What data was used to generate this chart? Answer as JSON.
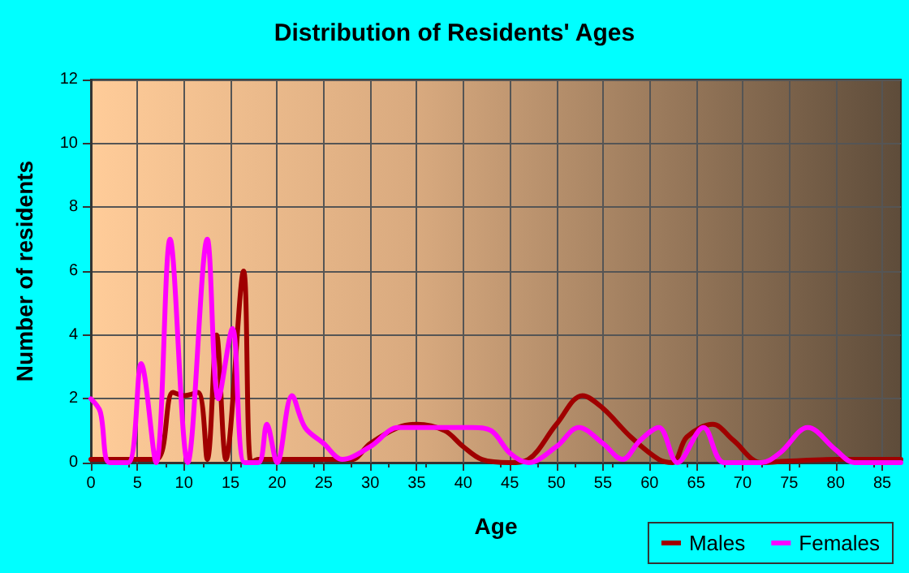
{
  "chart_data": {
    "type": "line",
    "title": "Distribution of Residents' Ages",
    "xlabel": "Age",
    "ylabel": "Number of residents",
    "xlim": [
      0,
      87
    ],
    "xticks": [
      0,
      5,
      10,
      15,
      20,
      25,
      30,
      35,
      40,
      45,
      50,
      55,
      60,
      65,
      70,
      75,
      80,
      85
    ],
    "ylim": [
      0,
      12
    ],
    "yticks": [
      0,
      2,
      4,
      6,
      8,
      10,
      12
    ],
    "grid": true,
    "legend": "bottom right",
    "marker": "none",
    "line_style": "solid",
    "series": [
      {
        "name": "Males",
        "color": "#a00000",
        "x": [
          0,
          3,
          7,
          8.8,
          10,
          11.5,
          12.5,
          13.5,
          14.5,
          16.4,
          17.2,
          18,
          25,
          28,
          30,
          33,
          35,
          38,
          40,
          42,
          45,
          47,
          50,
          52.8,
          55,
          58,
          61,
          62.5,
          64,
          66.8,
          69,
          72,
          75,
          80,
          87
        ],
        "values": [
          0.1,
          0.1,
          0.1,
          2.2,
          2.1,
          2.2,
          0.1,
          4,
          0.1,
          6,
          0,
          0.1,
          0.1,
          0.1,
          0.6,
          1.1,
          1.2,
          1,
          0.5,
          0.1,
          0,
          0.1,
          1.2,
          2.1,
          1.7,
          0.8,
          0.1,
          0,
          0.8,
          1.2,
          0.7,
          0,
          0.05,
          0.1,
          0.1
        ]
      },
      {
        "name": "Females",
        "color": "#ff00ff",
        "x": [
          0,
          1,
          2,
          4,
          5.4,
          7,
          8.5,
          10.4,
          12.5,
          13.7,
          15.2,
          16.5,
          18,
          18.9,
          20,
          21.6,
          23,
          25,
          27,
          30,
          33,
          35,
          38,
          41,
          43,
          45,
          47,
          50,
          52.4,
          55,
          57.1,
          59,
          61,
          63,
          65.8,
          68,
          72,
          74,
          77,
          80,
          82,
          87
        ],
        "values": [
          2,
          1.6,
          0,
          0,
          3.1,
          0,
          7,
          0,
          7,
          2,
          4.2,
          0,
          0,
          1.2,
          0,
          2.1,
          1.1,
          0.6,
          0.1,
          0.5,
          1.1,
          1.1,
          1.1,
          1.1,
          1,
          0.3,
          0,
          0.5,
          1.1,
          0.6,
          0.1,
          0.7,
          1.1,
          0,
          1.1,
          0,
          0,
          0.3,
          1.1,
          0.4,
          0,
          0
        ]
      }
    ]
  }
}
